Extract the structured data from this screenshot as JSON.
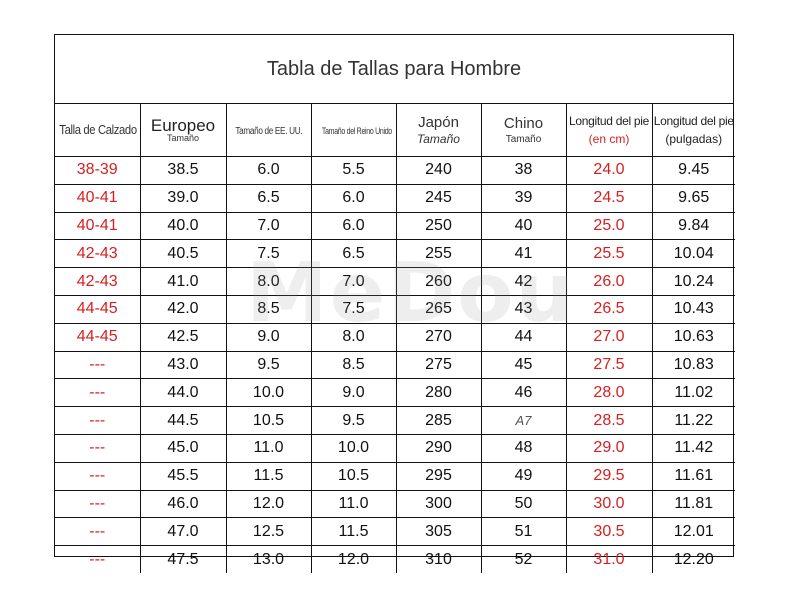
{
  "title": "Tabla de Tallas para Hombre",
  "headers": {
    "calzado": "Talla de Calzado",
    "europeo": "Europeo",
    "europeo_sub": "Tamaño",
    "usa": "Tamaño de EE. UU.",
    "uk": "Tamaño del Reino Unido",
    "japon": "Japón",
    "japon_sub": "Tamaño",
    "chino": "Chino",
    "chino_sub": "Tamaño",
    "longitud_cm": "Longitud del pie",
    "longitud_cm_sub": "(en cm)",
    "longitud_in": "Longitud del pie",
    "longitud_in_sub": "(pulgadas)"
  },
  "rows": [
    [
      "38-39",
      "38.5",
      "6.0",
      "5.5",
      "240",
      "38",
      "24.0",
      "9.45"
    ],
    [
      "40-41",
      "39.0",
      "6.5",
      "6.0",
      "245",
      "39",
      "24.5",
      "9.65"
    ],
    [
      "40-41",
      "40.0",
      "7.0",
      "6.0",
      "250",
      "40",
      "25.0",
      "9.84"
    ],
    [
      "42-43",
      "40.5",
      "7.5",
      "6.5",
      "255",
      "41",
      "25.5",
      "10.04"
    ],
    [
      "42-43",
      "41.0",
      "8.0",
      "7.0",
      "260",
      "42",
      "26.0",
      "10.24"
    ],
    [
      "44-45",
      "42.0",
      "8.5",
      "7.5",
      "265",
      "43",
      "26.5",
      "10.43"
    ],
    [
      "44-45",
      "42.5",
      "9.0",
      "8.0",
      "270",
      "44",
      "27.0",
      "10.63"
    ],
    [
      "---",
      "43.0",
      "9.5",
      "8.5",
      "275",
      "45",
      "27.5",
      "10.83"
    ],
    [
      "---",
      "44.0",
      "10.0",
      "9.0",
      "280",
      "46",
      "28.0",
      "11.02"
    ],
    [
      "---",
      "44.5",
      "10.5",
      "9.5",
      "285",
      "A7",
      "28.5",
      "11.22"
    ],
    [
      "---",
      "45.0",
      "11.0",
      "10.0",
      "290",
      "48",
      "29.0",
      "11.42"
    ],
    [
      "---",
      "45.5",
      "11.5",
      "10.5",
      "295",
      "49",
      "29.5",
      "11.61"
    ],
    [
      "---",
      "46.0",
      "12.0",
      "11.0",
      "300",
      "50",
      "30.0",
      "11.81"
    ],
    [
      "---",
      "47.0",
      "12.5",
      "11.5",
      "305",
      "51",
      "30.5",
      "12.01"
    ],
    [
      "---",
      "47.5",
      "13.0",
      "12.0",
      "310",
      "52",
      "31.0",
      "12.20"
    ]
  ],
  "watermark": "MeDou",
  "colors": {
    "accent_red": "#d61f1f",
    "border": "#111111"
  }
}
